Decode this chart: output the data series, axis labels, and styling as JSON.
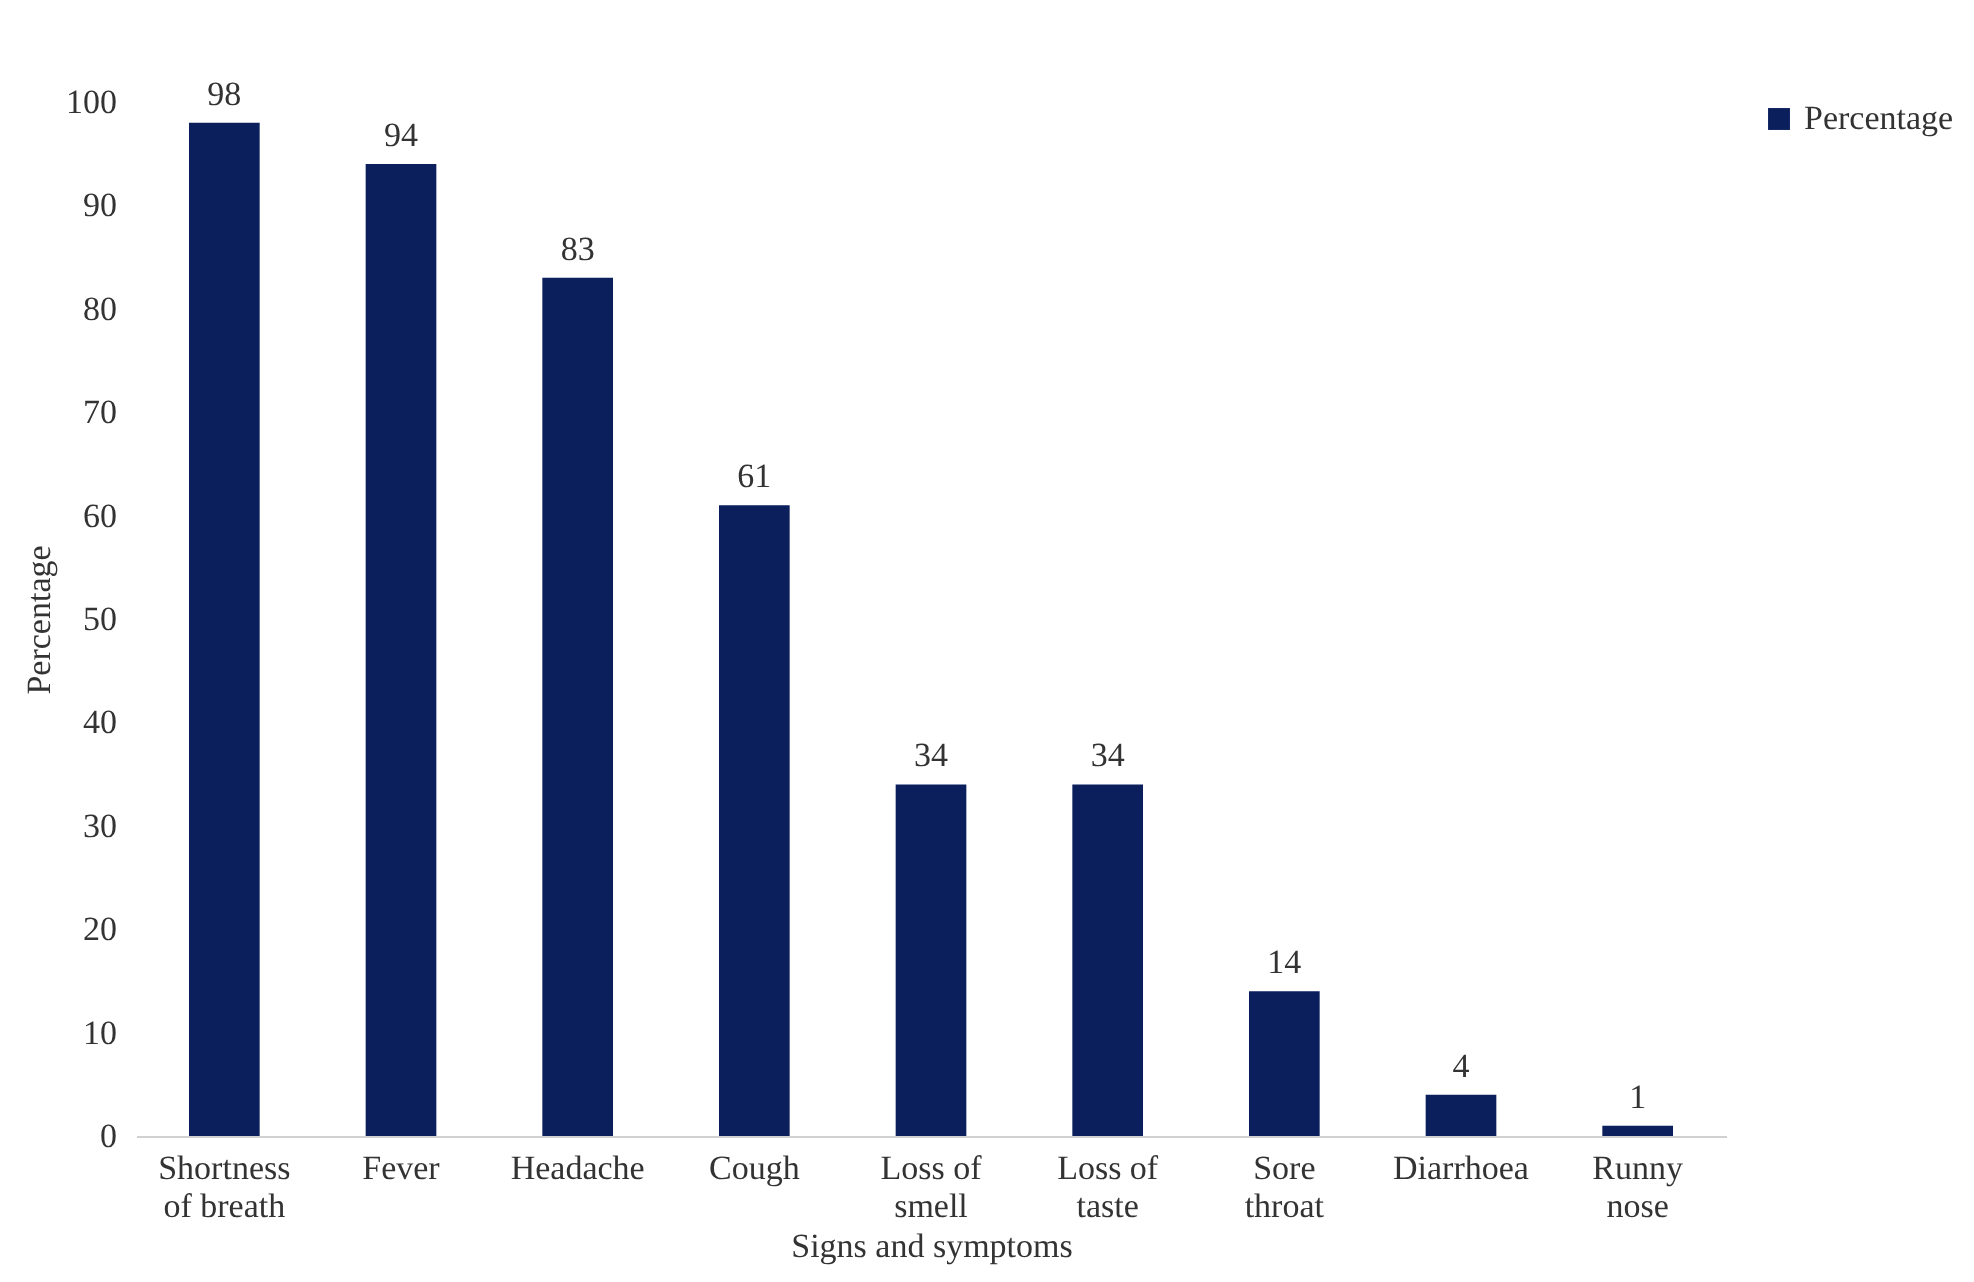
{
  "chart_data": {
    "type": "bar",
    "categories": [
      "Shortness of breath",
      "Fever",
      "Headache",
      "Cough",
      "Loss of smell",
      "Loss of taste",
      "Sore throat",
      "Diarrhoea",
      "Runny nose"
    ],
    "series": [
      {
        "name": "Percentage",
        "color": "#0b1f5c",
        "values": [
          98,
          94,
          83,
          61,
          34,
          34,
          14,
          4,
          1
        ]
      }
    ],
    "xlabel": "Signs and symptoms",
    "ylabel": "Percentage",
    "ylim": [
      0,
      100
    ],
    "yticks": [
      0,
      10,
      20,
      30,
      40,
      50,
      60,
      70,
      80,
      90,
      100
    ],
    "data_labels": true,
    "grid": false,
    "legend": "right"
  }
}
